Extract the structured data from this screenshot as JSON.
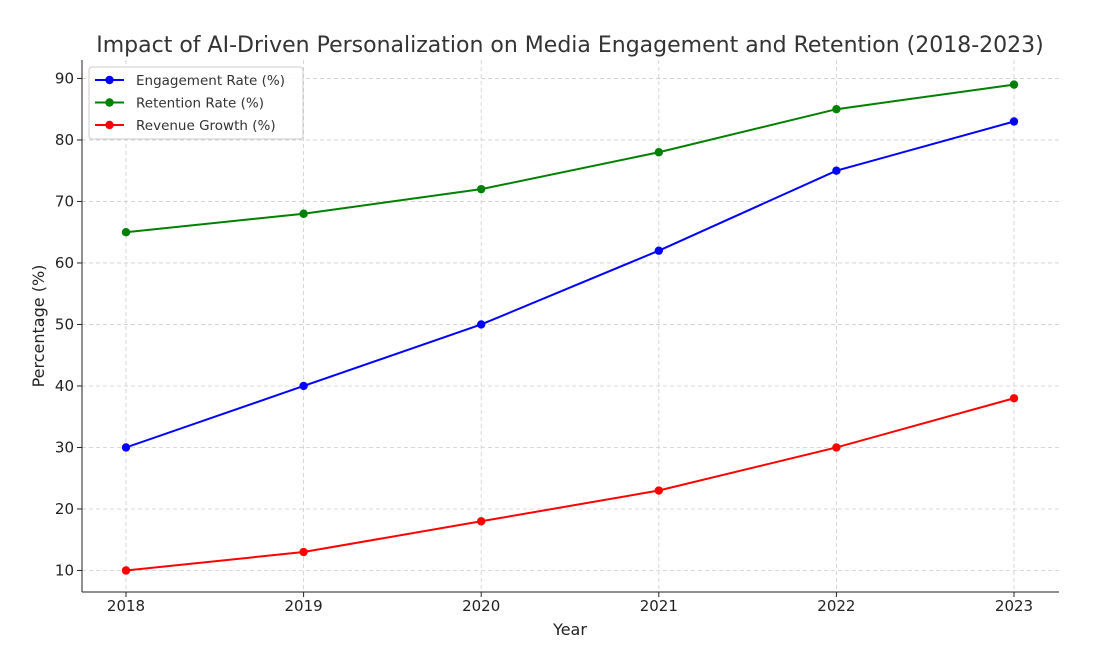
{
  "chart_data": {
    "type": "line",
    "title": "Impact of AI-Driven Personalization on Media Engagement and Retention (2018-2023)",
    "xlabel": "Year",
    "ylabel": "Percentage (%)",
    "categories": [
      "2018",
      "2019",
      "2020",
      "2021",
      "2022",
      "2023"
    ],
    "y_ticks": [
      10,
      20,
      30,
      40,
      50,
      60,
      70,
      80,
      90
    ],
    "ylim": [
      6.5,
      93
    ],
    "grid": true,
    "legend_position": "top-left",
    "series": [
      {
        "name": "Engagement Rate (%)",
        "color": "#0000ff",
        "values": [
          30,
          40,
          50,
          62,
          75,
          83
        ]
      },
      {
        "name": "Retention Rate (%)",
        "color": "#008000",
        "values": [
          65,
          68,
          72,
          78,
          85,
          89
        ]
      },
      {
        "name": "Revenue Growth (%)",
        "color": "#ff0000",
        "values": [
          10,
          13,
          18,
          23,
          30,
          38
        ]
      }
    ]
  }
}
